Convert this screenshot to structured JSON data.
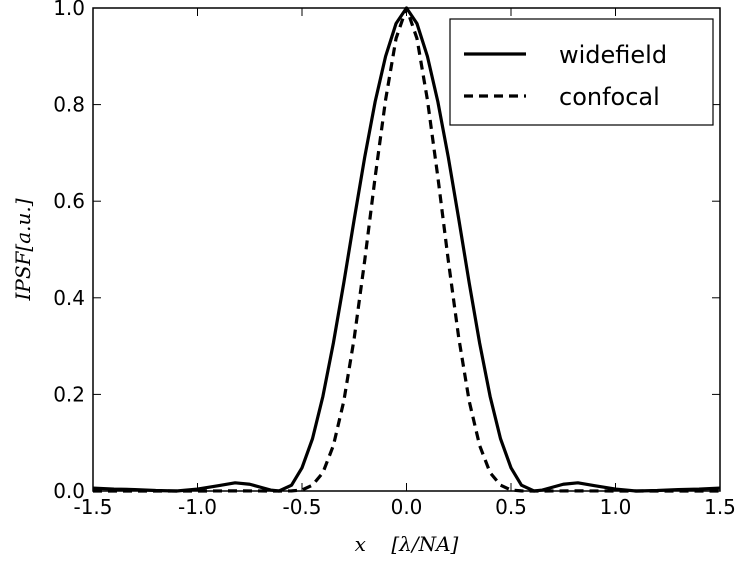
{
  "chart_data": {
    "type": "line",
    "xlabel": "x    [λ/NA]",
    "ylabel": "IPSF[a.u.]",
    "xlim": [
      -1.5,
      1.5
    ],
    "ylim": [
      0.0,
      1.0
    ],
    "xticks": [
      -1.5,
      -1.0,
      -0.5,
      0.0,
      0.5,
      1.0,
      1.5
    ],
    "xtick_labels": [
      "-1.5",
      "-1.0",
      "-0.5",
      "0.0",
      "0.5",
      "1.0",
      "1.5"
    ],
    "yticks": [
      0.0,
      0.2,
      0.4,
      0.6,
      0.8,
      1.0
    ],
    "ytick_labels": [
      "0.0",
      "0.2",
      "0.4",
      "0.6",
      "0.8",
      "1.0"
    ],
    "grid": false,
    "legend_position": "top-right",
    "series": [
      {
        "name": "widefield",
        "style": "solid",
        "color": "#000000",
        "x": [
          -1.5,
          -1.4,
          -1.3,
          -1.2,
          -1.1,
          -1.0,
          -0.9,
          -0.82,
          -0.75,
          -0.7,
          -0.65,
          -0.61,
          -0.55,
          -0.5,
          -0.45,
          -0.4,
          -0.35,
          -0.3,
          -0.25,
          -0.2,
          -0.15,
          -0.1,
          -0.05,
          0.0,
          0.05,
          0.1,
          0.15,
          0.2,
          0.25,
          0.3,
          0.35,
          0.4,
          0.45,
          0.5,
          0.55,
          0.61,
          0.65,
          0.7,
          0.75,
          0.82,
          0.9,
          1.0,
          1.1,
          1.2,
          1.3,
          1.4,
          1.5
        ],
        "y": [
          0.006,
          0.004,
          0.003,
          0.001,
          0.0,
          0.004,
          0.011,
          0.017,
          0.014,
          0.008,
          0.002,
          0.0,
          0.012,
          0.048,
          0.108,
          0.196,
          0.306,
          0.431,
          0.563,
          0.691,
          0.806,
          0.9,
          0.968,
          1.0,
          0.968,
          0.9,
          0.806,
          0.691,
          0.563,
          0.431,
          0.306,
          0.196,
          0.108,
          0.048,
          0.012,
          0.0,
          0.002,
          0.008,
          0.014,
          0.017,
          0.011,
          0.004,
          0.0,
          0.001,
          0.003,
          0.004,
          0.006
        ]
      },
      {
        "name": "confocal",
        "style": "dashed",
        "color": "#000000",
        "x": [
          -1.5,
          -1.3,
          -1.1,
          -0.9,
          -0.8,
          -0.7,
          -0.6,
          -0.55,
          -0.5,
          -0.45,
          -0.4,
          -0.35,
          -0.3,
          -0.25,
          -0.2,
          -0.15,
          -0.1,
          -0.05,
          0.0,
          0.05,
          0.1,
          0.15,
          0.2,
          0.25,
          0.3,
          0.35,
          0.4,
          0.45,
          0.5,
          0.55,
          0.6,
          0.7,
          0.8,
          0.9,
          1.1,
          1.3,
          1.5
        ],
        "y": [
          0.0,
          0.0,
          0.0,
          0.0001,
          0.0003,
          0.0001,
          0.0,
          0.0002,
          0.002,
          0.012,
          0.038,
          0.094,
          0.186,
          0.317,
          0.477,
          0.65,
          0.81,
          0.937,
          1.0,
          0.937,
          0.81,
          0.65,
          0.477,
          0.317,
          0.186,
          0.094,
          0.038,
          0.012,
          0.002,
          0.0002,
          0.0,
          0.0001,
          0.0003,
          0.0001,
          0.0,
          0.0,
          0.0
        ]
      }
    ]
  }
}
